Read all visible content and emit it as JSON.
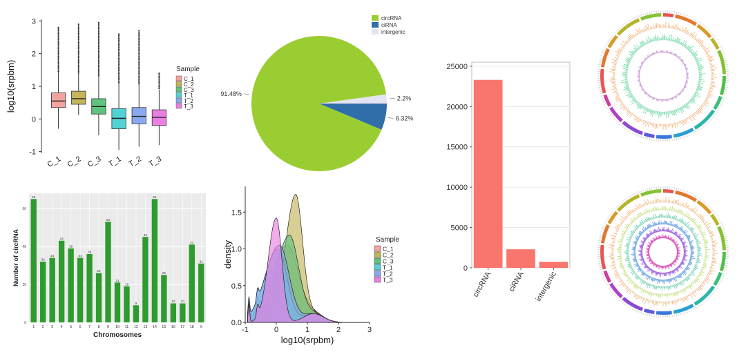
{
  "colors": {
    "C_1": "#f4a3a0",
    "C_2": "#c2b55a",
    "C_3": "#5fc37f",
    "T_1": "#53d2d6",
    "T_2": "#89a8f0",
    "T_3": "#ea7fe2",
    "circRNA": "#9acd32",
    "ciRNA": "#2f6ea8",
    "intergenic": "#e4e4f0",
    "bar_red": "#f8766d",
    "bar_green": "#2e9b2e"
  },
  "chart_data": [
    {
      "type": "box",
      "ylabel": "log10(srpbm)",
      "categories": [
        "C_1",
        "C_2",
        "C_3",
        "T_1",
        "T_2",
        "T_3"
      ],
      "legend_title": "Sample",
      "legend_labels": [
        "C_1",
        "C_2",
        "C_3",
        "T_1",
        "T_2",
        "T_3"
      ],
      "yticks": [
        "3",
        "2",
        "1",
        "0",
        "-1"
      ],
      "ylim": [
        -1.05,
        3.05
      ],
      "boxes": [
        {
          "q1": 0.35,
          "median": 0.55,
          "q3": 0.8,
          "lo": -0.3,
          "hi": 1.45,
          "fmax": 2.8
        },
        {
          "q1": 0.45,
          "median": 0.62,
          "q3": 0.85,
          "lo": 0.12,
          "hi": 1.4,
          "fmax": 2.9
        },
        {
          "q1": 0.15,
          "median": 0.38,
          "q3": 0.62,
          "lo": -0.5,
          "hi": 1.3,
          "fmax": 2.95
        },
        {
          "q1": -0.3,
          "median": 0.02,
          "q3": 0.32,
          "lo": -0.95,
          "hi": 1.1,
          "fmax": 2.6
        },
        {
          "q1": -0.15,
          "median": 0.08,
          "q3": 0.35,
          "lo": -0.85,
          "hi": 1.05,
          "fmax": 2.7
        },
        {
          "q1": -0.2,
          "median": 0.05,
          "q3": 0.28,
          "lo": -0.8,
          "hi": 0.9,
          "fmax": 1.4
        }
      ]
    },
    {
      "type": "pie",
      "labels": [
        "circRNA",
        "ciRNA",
        "intergenic"
      ],
      "values": [
        91.48,
        6.32,
        2.2
      ],
      "value_labels": [
        "91.48%",
        "6.32%",
        "2.2%"
      ]
    },
    {
      "type": "bar",
      "categories": [
        "circRNA",
        "ciRNA",
        "intergenic"
      ],
      "values": [
        23300,
        2300,
        750
      ],
      "yticks": [
        "0",
        "5000",
        "10000",
        "15000",
        "20000",
        "25000"
      ],
      "ylim": [
        0,
        25500
      ]
    },
    {
      "type": "bar",
      "xlabel": "Chromosomes",
      "ylabel": "Number of circRNA",
      "categories": [
        "1",
        "2",
        "3",
        "4",
        "5",
        "6",
        "7",
        "8",
        "9",
        "10",
        "11",
        "12",
        "13",
        "14",
        "15",
        "16",
        "17",
        "18",
        "X"
      ],
      "values": [
        65,
        32,
        34,
        43,
        39,
        34,
        36,
        26,
        53,
        21,
        19,
        9,
        45,
        65,
        25,
        10,
        10,
        41,
        31
      ],
      "yticks": [
        "0",
        "20",
        "40",
        "60"
      ],
      "ylim": [
        0,
        68
      ]
    },
    {
      "type": "area",
      "xlabel": "log10(srpbm)",
      "ylabel": "density",
      "legend_title": "Sample",
      "legend_labels": [
        "C_1",
        "C_2",
        "C_3",
        "T_1",
        "T_2",
        "T_3"
      ],
      "xticks": [
        "-1",
        "0",
        "1",
        "2",
        "3"
      ],
      "yticks": [
        "0.0",
        "0.5",
        "1.0",
        "1.5"
      ],
      "xlim": [
        -1,
        3
      ],
      "ylim": [
        0,
        1.85
      ],
      "series": [
        {
          "name": "C_1",
          "peak": 0.35,
          "height": 1.05,
          "width": 0.4
        },
        {
          "name": "C_2",
          "peak": 0.62,
          "height": 1.72,
          "width": 0.25
        },
        {
          "name": "C_3",
          "peak": 0.42,
          "height": 1.18,
          "width": 0.33
        },
        {
          "name": "T_1",
          "peak": 0.05,
          "height": 1.0,
          "width": 0.33
        },
        {
          "name": "T_2",
          "peak": 0.1,
          "height": 1.05,
          "width": 0.35
        },
        {
          "name": "T_3",
          "peak": 0.0,
          "height": 1.42,
          "width": 0.2
        }
      ]
    }
  ]
}
